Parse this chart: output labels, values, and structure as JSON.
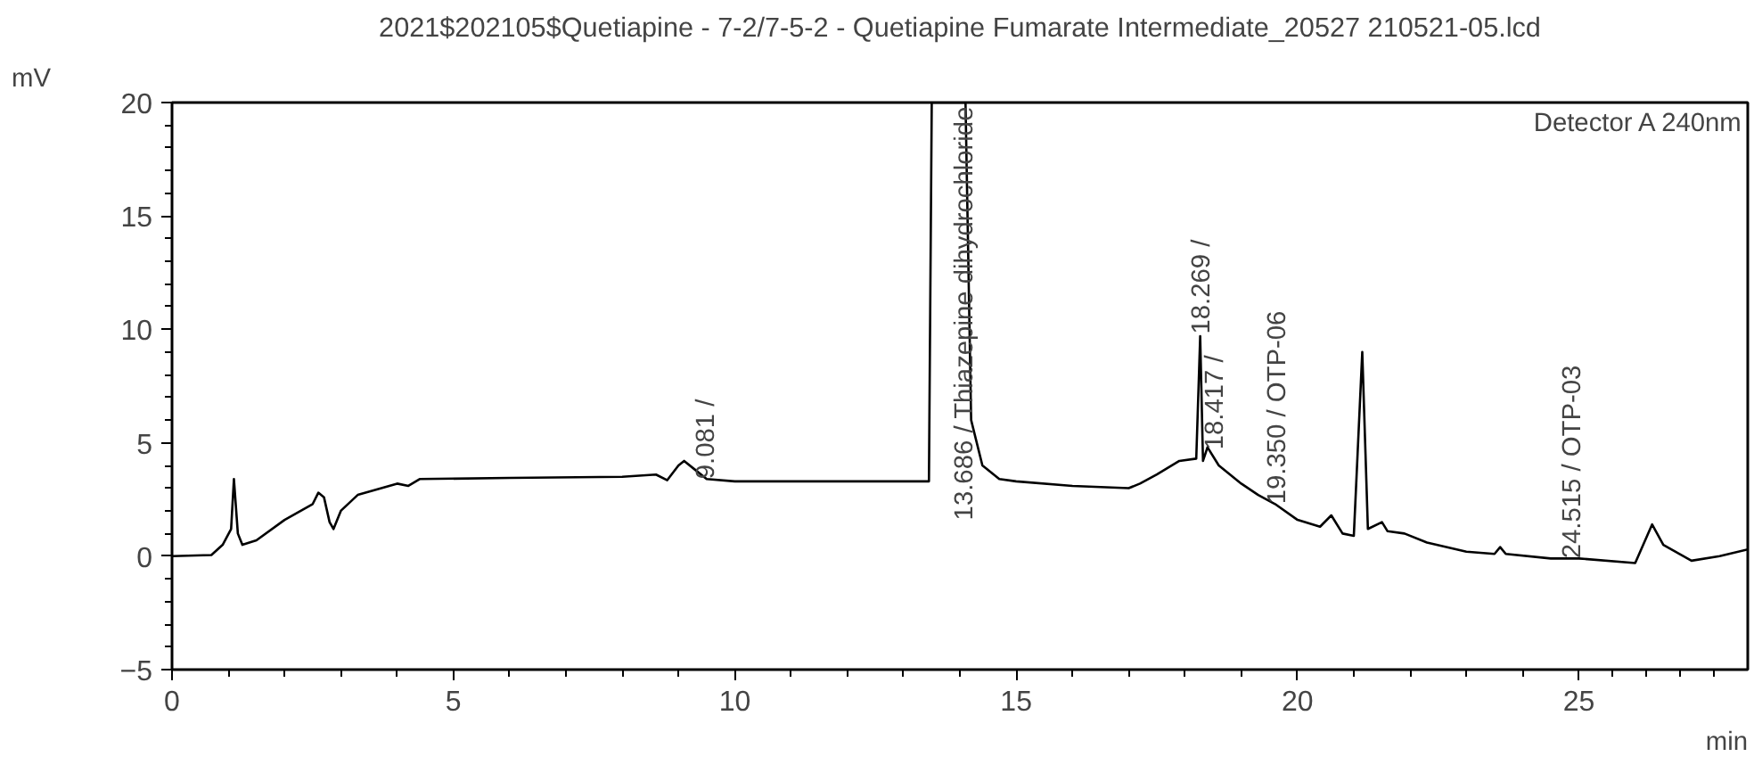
{
  "chart_data": {
    "type": "line",
    "title": "2021$202105$Quetiapine - 7-2/7-5-2 - Quetiapine Fumarate Intermediate_20527 210521-05.lcd",
    "xlabel": "min",
    "ylabel": "mV",
    "x": [
      0,
      0.7,
      0.9,
      1.05,
      1.1,
      1.17,
      1.25,
      1.5,
      2.0,
      2.5,
      2.6,
      2.7,
      2.8,
      2.87,
      3.0,
      3.3,
      4.0,
      4.2,
      4.4,
      6,
      8,
      8.6,
      8.8,
      9.0,
      9.1,
      9.3,
      9.5,
      10,
      12,
      13.45,
      13.5,
      14.1,
      14.2,
      14.4,
      14.7,
      15,
      16,
      17,
      17.2,
      17.5,
      17.9,
      18.2,
      18.27,
      18.32,
      18.4,
      18.6,
      19.0,
      19.3,
      19.6,
      20.0,
      20.4,
      20.6,
      20.8,
      21.0,
      21.15,
      21.25,
      21.5,
      21.6,
      21.9,
      22.3,
      23,
      23.5,
      23.6,
      23.7,
      24.5,
      25,
      26,
      26.3,
      26.5,
      27,
      27.5,
      28
    ],
    "series": [
      {
        "color": "#000000",
        "values": [
          0,
          0.05,
          0.5,
          1.2,
          3.4,
          1.0,
          0.5,
          0.7,
          1.6,
          2.3,
          2.8,
          2.6,
          1.5,
          1.2,
          2.0,
          2.7,
          3.2,
          3.1,
          3.4,
          3.45,
          3.5,
          3.6,
          3.35,
          4.0,
          4.2,
          3.8,
          3.4,
          3.3,
          3.3,
          3.3,
          20,
          20,
          6,
          4,
          3.4,
          3.3,
          3.1,
          3.0,
          3.2,
          3.6,
          4.2,
          4.3,
          9.7,
          4.2,
          4.8,
          4.0,
          3.2,
          2.7,
          2.3,
          1.6,
          1.3,
          1.8,
          1.0,
          0.9,
          9.0,
          1.2,
          1.5,
          1.1,
          1.0,
          0.6,
          0.2,
          0.1,
          0.4,
          0.1,
          -0.1,
          -0.1,
          -0.3,
          1.4,
          0.5,
          -0.2,
          0.0,
          0.3
        ]
      }
    ],
    "xlim": [
      0,
      28
    ],
    "xticks": [
      0,
      5,
      10,
      15,
      20,
      25
    ],
    "ylim": [
      -5,
      20
    ],
    "yticks": [
      -5,
      0,
      5,
      10,
      15,
      20
    ],
    "grid": false,
    "line_style": "solid",
    "annotations": [
      {
        "text": "9.081 /",
        "x": 9.5,
        "y": 3.4
      },
      "13.686 / Thiazepine dihydrochloride",
      {
        "text": "18.269 /",
        "x": 18.3,
        "y": 9.8
      },
      {
        "text": "18.417 /",
        "x": 18.55,
        "y": 4.7
      },
      {
        "text": "19.350 / OTP-06",
        "x": 19.65,
        "y": 2.3
      },
      {
        "text": "24.515 / OTP-03",
        "x": 24.9,
        "y": -0.1
      },
      "Detector A 240nm"
    ]
  }
}
